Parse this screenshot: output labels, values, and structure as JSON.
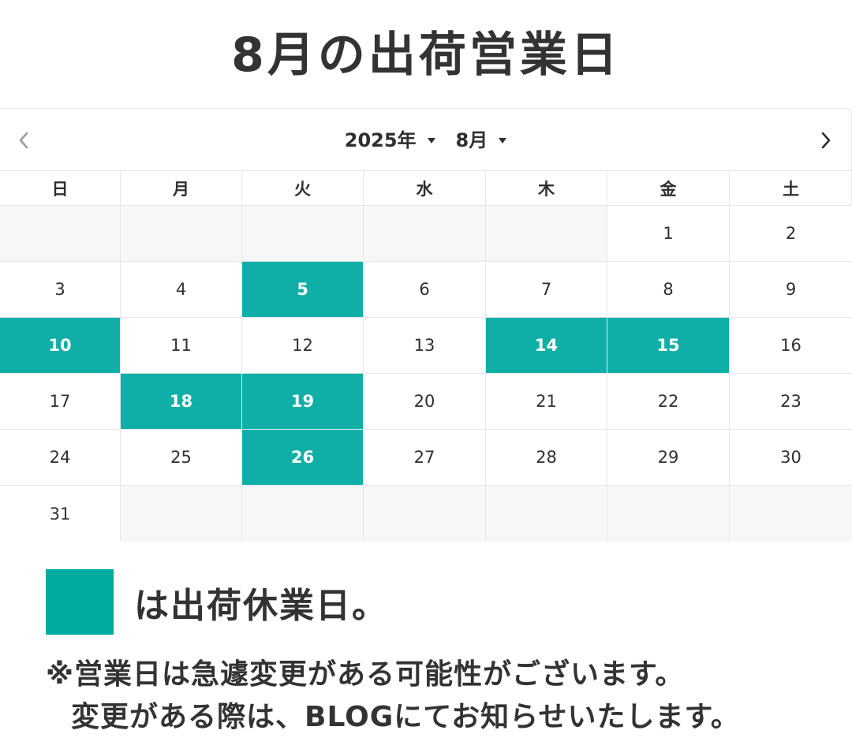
{
  "title": "8月の出荷営業日",
  "calendar": {
    "year_label": "2025年",
    "month_label": "8月",
    "prev_icon": "chevron-left-icon",
    "next_icon": "chevron-right-icon",
    "weekdays": [
      "日",
      "月",
      "火",
      "水",
      "木",
      "金",
      "土"
    ],
    "weeks": [
      [
        "",
        "",
        "",
        "",
        "",
        "1",
        "2"
      ],
      [
        "3",
        "4",
        "5",
        "6",
        "7",
        "8",
        "9"
      ],
      [
        "10",
        "11",
        "12",
        "13",
        "14",
        "15",
        "16"
      ],
      [
        "17",
        "18",
        "19",
        "20",
        "21",
        "22",
        "23"
      ],
      [
        "24",
        "25",
        "26",
        "27",
        "28",
        "29",
        "30"
      ],
      [
        "31",
        "",
        "",
        "",
        "",
        "",
        ""
      ]
    ],
    "closed_days": [
      "5",
      "10",
      "14",
      "15",
      "18",
      "19",
      "26"
    ],
    "closed_color": "#0fafa7"
  },
  "legend": {
    "swatch_color": "#00aba2",
    "text": "は出荷休業日。"
  },
  "notes": {
    "line1": "※営業日は急遽変更がある可能性がございます。",
    "line2": "変更がある際は、BLOGにてお知らせいたします。"
  }
}
